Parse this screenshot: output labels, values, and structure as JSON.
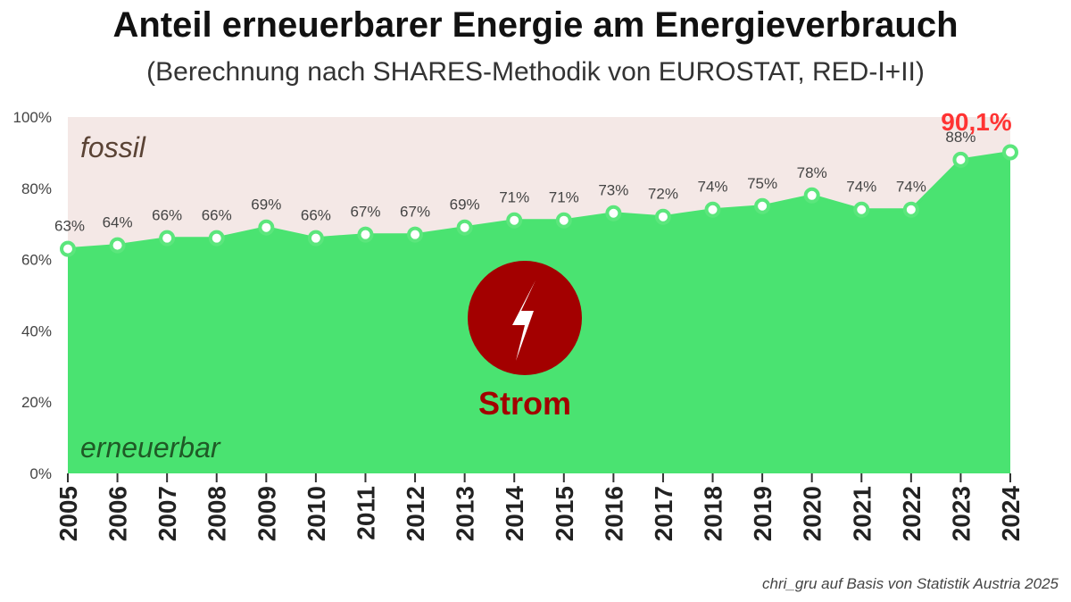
{
  "title": "Anteil erneuerbarer Energie am Energieverbrauch",
  "subtitle": "(Berechnung nach SHARES-Methodik von EUROSTAT, RED-I+II)",
  "credit": "chri_gru auf Basis von Statistik Austria 2025",
  "colors": {
    "renewable": "#4ae371",
    "fossil_background": "#f4e8e6",
    "marker_stroke": "#5be67c",
    "highlight_label": "#ff3333",
    "bolt_circle": "#a30000",
    "strom_text": "#a30000",
    "fossil_text": "#5a4335",
    "renewable_text": "#1f5a26"
  },
  "chart_data": {
    "type": "area",
    "x": [
      "2005",
      "2006",
      "2007",
      "2008",
      "2009",
      "2010",
      "2011",
      "2012",
      "2013",
      "2014",
      "2015",
      "2016",
      "2017",
      "2018",
      "2019",
      "2020",
      "2021",
      "2022",
      "2023",
      "2024"
    ],
    "values": [
      63,
      64,
      66,
      66,
      69,
      66,
      67,
      67,
      69,
      71,
      71,
      73,
      72,
      74,
      75,
      78,
      74,
      74,
      88,
      90.1
    ],
    "data_labels": [
      "63%",
      "64%",
      "66%",
      "66%",
      "69%",
      "66%",
      "67%",
      "67%",
      "69%",
      "71%",
      "71%",
      "73%",
      "72%",
      "74%",
      "75%",
      "78%",
      "74%",
      "74%",
      "88%",
      "90,1%"
    ],
    "ylim": [
      0,
      100
    ],
    "y_ticks": [
      0,
      20,
      40,
      60,
      80,
      100
    ],
    "y_tick_labels": [
      "0%",
      "20%",
      "40%",
      "60%",
      "80%",
      "100%"
    ],
    "grid": false,
    "annotations": {
      "upper_region": "fossil",
      "lower_region": "erneuerbar",
      "icon_label": "Strom",
      "icon": "lightning-bolt-icon"
    }
  }
}
